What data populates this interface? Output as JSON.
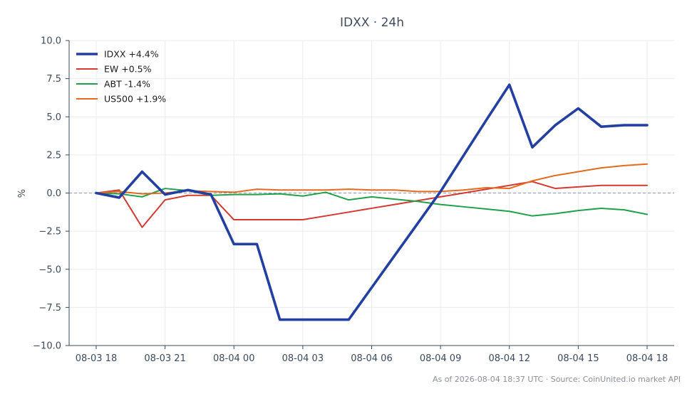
{
  "chart_data": {
    "type": "line",
    "title": "IDXX · 24h",
    "xlabel": "",
    "ylabel": "%",
    "ylim": [
      -10,
      10
    ],
    "yticks": [
      "10.0",
      "7.5",
      "5.0",
      "2.5",
      "0.0",
      "−2.5",
      "−5.0",
      "−7.5",
      "−10.0"
    ],
    "ytick_values": [
      10,
      7.5,
      5,
      2.5,
      0,
      -2.5,
      -5,
      -7.5,
      -10
    ],
    "x": [
      "2026-08-03 18:00",
      "2026-08-03 19:00",
      "2026-08-03 20:00",
      "2026-08-03 21:00",
      "2026-08-03 22:00",
      "2026-08-03 23:00",
      "2026-08-04 00:00",
      "2026-08-04 01:00",
      "2026-08-04 02:00",
      "2026-08-04 03:00",
      "2026-08-04 04:00",
      "2026-08-04 05:00",
      "2026-08-04 06:00",
      "2026-08-04 07:00",
      "2026-08-04 08:00",
      "2026-08-04 09:00",
      "2026-08-04 10:00",
      "2026-08-04 11:00",
      "2026-08-04 12:00",
      "2026-08-04 13:00",
      "2026-08-04 14:00",
      "2026-08-04 15:00",
      "2026-08-04 16:00",
      "2026-08-04 17:00",
      "2026-08-04 18:00"
    ],
    "xticks": [
      "08-03 18",
      "08-03 21",
      "08-04 00",
      "08-04 03",
      "08-04 06",
      "08-04 09",
      "08-04 12",
      "08-04 15",
      "08-04 18"
    ],
    "xtick_index": [
      0,
      3,
      6,
      9,
      12,
      15,
      18,
      21,
      24
    ],
    "grid": true,
    "legend_position": "top-left",
    "zero_line": true,
    "series": [
      {
        "name": "IDXX +4.4%",
        "color": "#2340a0",
        "values": [
          0.0,
          -0.3,
          1.4,
          -0.1,
          0.2,
          -0.1,
          -3.35,
          -3.35,
          -8.3,
          -8.3,
          -8.3,
          -8.3,
          -6.2,
          -4.1,
          -2.0,
          0.1,
          2.45,
          4.8,
          7.1,
          3.0,
          4.45,
          5.55,
          4.35,
          4.45,
          4.45
        ],
        "emphasis": true
      },
      {
        "name": "EW +0.5%",
        "color": "#d23a32",
        "values": [
          0.0,
          0.2,
          -2.25,
          -0.45,
          -0.15,
          -0.15,
          -1.75,
          -1.75,
          -1.75,
          -1.75,
          -1.5,
          -1.25,
          -1.0,
          -0.75,
          -0.5,
          -0.25,
          0.0,
          0.25,
          0.5,
          0.75,
          0.3,
          0.4,
          0.5,
          0.5,
          0.5
        ]
      },
      {
        "name": "ABT -1.4%",
        "color": "#21a04a",
        "values": [
          0.0,
          -0.05,
          -0.25,
          0.3,
          0.15,
          -0.15,
          -0.1,
          -0.1,
          -0.05,
          -0.2,
          0.05,
          -0.45,
          -0.25,
          -0.4,
          -0.55,
          -0.75,
          -0.9,
          -1.05,
          -1.2,
          -1.5,
          -1.35,
          -1.15,
          -1.0,
          -1.1,
          -1.4
        ]
      },
      {
        "name": "US500 +1.9%",
        "color": "#e36a1e",
        "values": [
          0.0,
          0.1,
          -0.05,
          0.0,
          0.15,
          0.1,
          0.05,
          0.25,
          0.2,
          0.2,
          0.2,
          0.25,
          0.2,
          0.2,
          0.1,
          0.1,
          0.2,
          0.35,
          0.3,
          0.8,
          1.15,
          1.4,
          1.65,
          1.8,
          1.9
        ]
      }
    ]
  },
  "footer": "As of 2026-08-04 18:37 UTC · Source: CoinUnited.io market API"
}
